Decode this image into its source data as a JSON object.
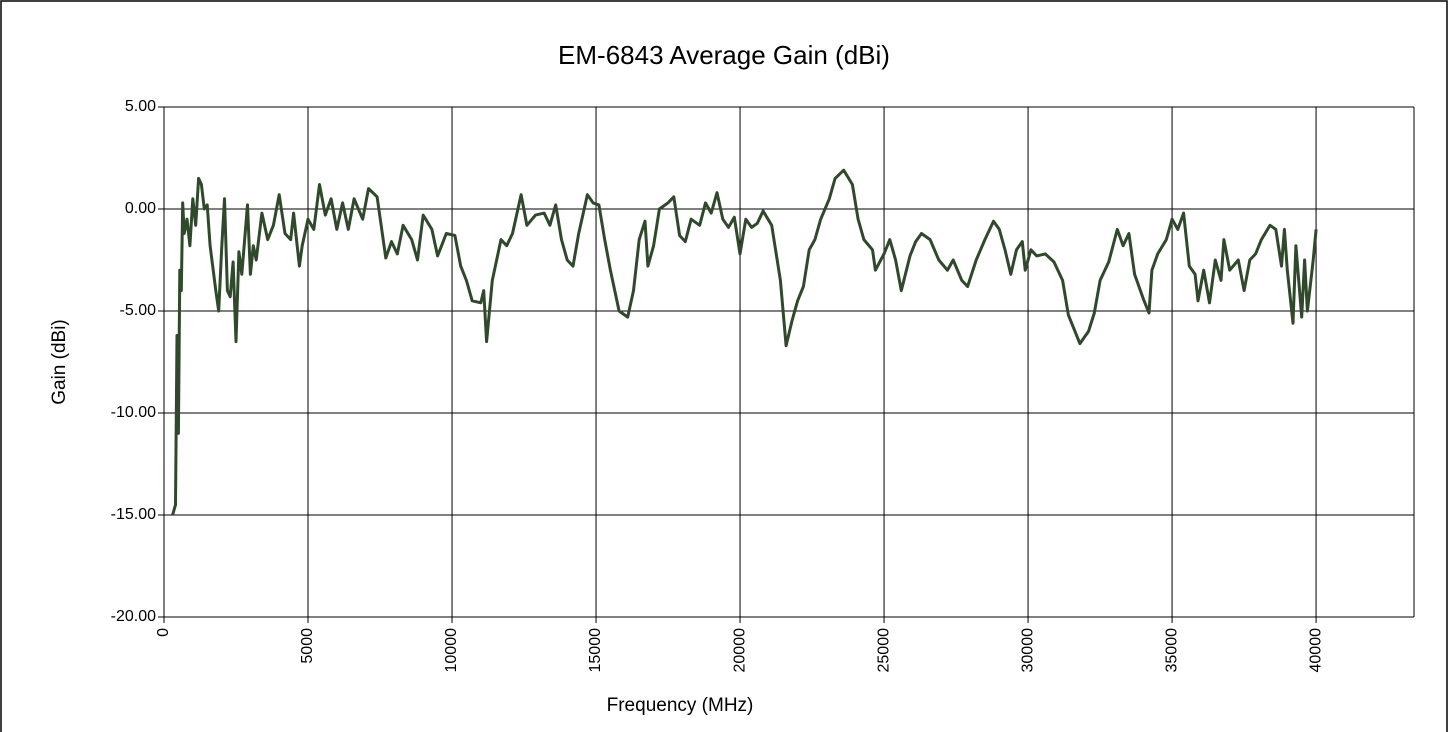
{
  "chart_data": {
    "type": "line",
    "title": "EM-6843 Average Gain (dBi)",
    "x_label": "Frequency (MHz)",
    "y_label": "Gain (dBi)",
    "xlim": [
      0,
      43400
    ],
    "xticks": [
      0,
      5000,
      10000,
      15000,
      20000,
      25000,
      30000,
      35000,
      40000
    ],
    "ylim": [
      -20,
      5
    ],
    "yticks": [
      {
        "value": 5,
        "label": "5.00"
      },
      {
        "value": 0,
        "label": "0.00"
      },
      {
        "value": -5,
        "label": "-5.00"
      },
      {
        "value": -10,
        "label": "-10.00"
      },
      {
        "value": -15,
        "label": "-15.00"
      },
      {
        "value": -20,
        "label": "-20.00"
      }
    ],
    "grid": true,
    "series": [
      {
        "name": "Average Gain",
        "color": "#2f4a2a",
        "x": [
          300,
          400,
          450,
          500,
          550,
          600,
          650,
          700,
          800,
          900,
          1000,
          1100,
          1200,
          1300,
          1400,
          1500,
          1600,
          1800,
          1900,
          2000,
          2100,
          2200,
          2300,
          2400,
          2500,
          2600,
          2700,
          2900,
          3000,
          3100,
          3200,
          3400,
          3600,
          3800,
          4000,
          4200,
          4400,
          4500,
          4700,
          4800,
          5000,
          5200,
          5400,
          5600,
          5800,
          6000,
          6200,
          6400,
          6600,
          6900,
          7100,
          7400,
          7700,
          7900,
          8100,
          8300,
          8600,
          8800,
          9000,
          9300,
          9500,
          9800,
          10100,
          10300,
          10500,
          10700,
          11000,
          11100,
          11200,
          11400,
          11700,
          11900,
          12100,
          12400,
          12600,
          12900,
          13200,
          13400,
          13600,
          13800,
          14000,
          14200,
          14400,
          14700,
          14900,
          15100,
          15300,
          15500,
          15800,
          16100,
          16300,
          16500,
          16700,
          16800,
          17000,
          17200,
          17500,
          17700,
          17900,
          18100,
          18300,
          18600,
          18800,
          19000,
          19200,
          19400,
          19600,
          19800,
          20000,
          20200,
          20400,
          20600,
          20800,
          21100,
          21400,
          21600,
          21800,
          22000,
          22200,
          22400,
          22600,
          22800,
          23100,
          23300,
          23600,
          23900,
          24100,
          24300,
          24600,
          24700,
          25000,
          25200,
          25400,
          25600,
          25900,
          26100,
          26300,
          26600,
          26900,
          27200,
          27400,
          27700,
          27900,
          28200,
          28500,
          28800,
          29000,
          29200,
          29400,
          29600,
          29800,
          29900,
          30100,
          30300,
          30600,
          30900,
          31200,
          31400,
          31800,
          32100,
          32300,
          32500,
          32800,
          33100,
          33300,
          33500,
          33700,
          34000,
          34200,
          34300,
          34500,
          34800,
          35000,
          35200,
          35400,
          35600,
          35800,
          35900,
          36100,
          36300,
          36500,
          36700,
          36800,
          37000,
          37300,
          37500,
          37700,
          37900,
          38100,
          38400,
          38600,
          38800,
          38900,
          39000,
          39200,
          39300,
          39500,
          39600,
          39700,
          39900,
          40000
        ],
        "values": [
          -15,
          -14.5,
          -6.2,
          -11,
          -3,
          -4,
          0.3,
          -1.2,
          -0.5,
          -1.8,
          0.5,
          -0.8,
          1.5,
          1.2,
          0,
          0.2,
          -1.8,
          -4,
          -5,
          -2,
          0.5,
          -4,
          -4.3,
          -2.6,
          -6.5,
          -2.1,
          -3.2,
          0.2,
          -3.2,
          -1.8,
          -2.5,
          -0.2,
          -1.5,
          -0.8,
          0.7,
          -1.2,
          -1.5,
          -0.2,
          -2.8,
          -1.8,
          -0.5,
          -1,
          1.2,
          -0.3,
          0.5,
          -1,
          0.3,
          -1,
          0.5,
          -0.5,
          1,
          0.6,
          -2.4,
          -1.6,
          -2.2,
          -0.8,
          -1.5,
          -2.5,
          -0.3,
          -1,
          -2.3,
          -1.2,
          -1.3,
          -2.8,
          -3.5,
          -4.5,
          -4.6,
          -4,
          -6.5,
          -3.5,
          -1.5,
          -1.8,
          -1.2,
          0.7,
          -0.8,
          -0.3,
          -0.2,
          -0.8,
          0.2,
          -1.5,
          -2.5,
          -2.8,
          -1.2,
          0.7,
          0.3,
          0.2,
          -1.5,
          -3,
          -5,
          -5.3,
          -4,
          -1.5,
          -0.6,
          -2.8,
          -1.8,
          0,
          0.3,
          0.6,
          -1.3,
          -1.6,
          -0.5,
          -0.8,
          0.3,
          -0.2,
          0.8,
          -0.5,
          -0.9,
          -0.4,
          -2.2,
          -0.5,
          -0.9,
          -0.7,
          -0.1,
          -0.8,
          -3.5,
          -6.7,
          -5.5,
          -4.5,
          -3.8,
          -2,
          -1.5,
          -0.5,
          0.5,
          1.5,
          1.9,
          1.2,
          -0.5,
          -1.5,
          -2,
          -3,
          -2.2,
          -1.5,
          -2.5,
          -4,
          -2.3,
          -1.6,
          -1.2,
          -1.5,
          -2.5,
          -3,
          -2.5,
          -3.5,
          -3.8,
          -2.5,
          -1.5,
          -0.6,
          -1,
          -2,
          -3.2,
          -2,
          -1.6,
          -3,
          -2,
          -2.3,
          -2.2,
          -2.6,
          -3.5,
          -5.2,
          -6.6,
          -6,
          -5.1,
          -3.5,
          -2.6,
          -1,
          -1.8,
          -1.2,
          -3.2,
          -4.4,
          -5.1,
          -3,
          -2.2,
          -1.5,
          -0.5,
          -1,
          -0.2,
          -2.8,
          -3.2,
          -4.5,
          -3,
          -4.6,
          -2.5,
          -3.5,
          -1.5,
          -3,
          -2.5,
          -4,
          -2.5,
          -2.2,
          -1.5,
          -0.8,
          -1,
          -2.8,
          -1,
          -3,
          -5.6,
          -1.8,
          -5.3,
          -2.5,
          -5,
          -2.5,
          -1
        ]
      }
    ]
  }
}
